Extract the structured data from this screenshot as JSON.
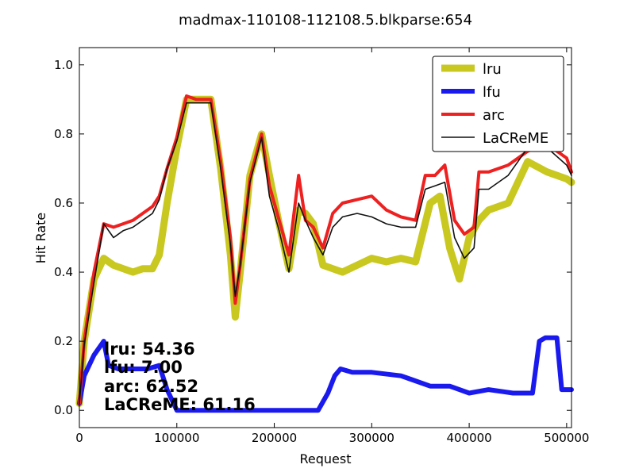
{
  "chart_data": {
    "type": "line",
    "title": "madmax-110108-112108.5.blkparse:654",
    "xlabel": "Request",
    "ylabel": "Hit Rate",
    "xlim": [
      0,
      505000
    ],
    "ylim": [
      -0.05,
      1.05
    ],
    "xticks": [
      0,
      100000,
      200000,
      300000,
      400000,
      500000
    ],
    "xtick_labels": [
      "0",
      "100000",
      "200000",
      "300000",
      "400000",
      "500000"
    ],
    "yticks": [
      0.0,
      0.2,
      0.4,
      0.6,
      0.8,
      1.0
    ],
    "ytick_labels": [
      "0.0",
      "0.2",
      "0.4",
      "0.6",
      "0.8",
      "1.0"
    ],
    "grid": false,
    "legend_position": "upper right",
    "series": [
      {
        "name": "lru",
        "color": "#c8c820",
        "x": [
          0,
          5000,
          15000,
          25000,
          35000,
          45000,
          55000,
          65000,
          75000,
          82000,
          90000,
          100000,
          110000,
          120000,
          135000,
          145000,
          155000,
          160000,
          165000,
          175000,
          187000,
          195000,
          205000,
          215000,
          225000,
          232000,
          240000,
          250000,
          260000,
          270000,
          285000,
          300000,
          315000,
          330000,
          345000,
          360000,
          370000,
          380000,
          390000,
          400000,
          410000,
          420000,
          440000,
          460000,
          480000,
          500000,
          505000
        ],
        "y": [
          0.02,
          0.2,
          0.38,
          0.44,
          0.42,
          0.41,
          0.4,
          0.41,
          0.41,
          0.45,
          0.6,
          0.76,
          0.9,
          0.9,
          0.9,
          0.7,
          0.45,
          0.27,
          0.4,
          0.68,
          0.8,
          0.68,
          0.54,
          0.41,
          0.58,
          0.57,
          0.54,
          0.42,
          0.41,
          0.4,
          0.42,
          0.44,
          0.43,
          0.44,
          0.43,
          0.6,
          0.62,
          0.47,
          0.38,
          0.5,
          0.55,
          0.58,
          0.6,
          0.72,
          0.69,
          0.67,
          0.66
        ]
      },
      {
        "name": "lfu",
        "color": "#1a1aee",
        "x": [
          0,
          5000,
          15000,
          25000,
          30000,
          40000,
          55000,
          70000,
          82000,
          90000,
          100000,
          150000,
          200000,
          245000,
          255000,
          262000,
          268000,
          280000,
          300000,
          330000,
          340000,
          360000,
          380000,
          390000,
          400000,
          420000,
          445000,
          465000,
          472000,
          478000,
          490000,
          495000,
          505000
        ],
        "y": [
          0.02,
          0.1,
          0.16,
          0.2,
          0.13,
          0.12,
          0.12,
          0.12,
          0.13,
          0.06,
          0.0,
          0.0,
          0.0,
          0.0,
          0.05,
          0.1,
          0.12,
          0.11,
          0.11,
          0.1,
          0.09,
          0.07,
          0.07,
          0.06,
          0.05,
          0.06,
          0.05,
          0.05,
          0.2,
          0.21,
          0.21,
          0.06,
          0.06
        ]
      },
      {
        "name": "arc",
        "color": "#ee2020",
        "x": [
          0,
          5000,
          15000,
          25000,
          35000,
          45000,
          55000,
          65000,
          75000,
          82000,
          90000,
          100000,
          110000,
          120000,
          135000,
          145000,
          155000,
          160000,
          165000,
          175000,
          187000,
          195000,
          205000,
          215000,
          225000,
          232000,
          240000,
          250000,
          260000,
          270000,
          285000,
          300000,
          315000,
          330000,
          345000,
          355000,
          365000,
          375000,
          385000,
          395000,
          405000,
          410000,
          420000,
          440000,
          460000,
          480000,
          500000,
          505000
        ],
        "y": [
          0.02,
          0.2,
          0.4,
          0.54,
          0.53,
          0.54,
          0.55,
          0.57,
          0.59,
          0.62,
          0.7,
          0.79,
          0.91,
          0.9,
          0.9,
          0.72,
          0.5,
          0.31,
          0.42,
          0.67,
          0.8,
          0.65,
          0.55,
          0.45,
          0.68,
          0.55,
          0.53,
          0.47,
          0.57,
          0.6,
          0.61,
          0.62,
          0.58,
          0.56,
          0.55,
          0.68,
          0.68,
          0.71,
          0.55,
          0.51,
          0.53,
          0.69,
          0.69,
          0.71,
          0.75,
          0.77,
          0.73,
          0.69
        ]
      },
      {
        "name": "LaCReME",
        "color": "#111111",
        "x": [
          0,
          5000,
          15000,
          25000,
          35000,
          45000,
          55000,
          65000,
          75000,
          82000,
          90000,
          100000,
          110000,
          120000,
          135000,
          145000,
          155000,
          160000,
          165000,
          175000,
          187000,
          195000,
          205000,
          215000,
          225000,
          232000,
          240000,
          250000,
          260000,
          270000,
          285000,
          300000,
          315000,
          330000,
          345000,
          355000,
          365000,
          375000,
          385000,
          395000,
          405000,
          410000,
          420000,
          440000,
          460000,
          480000,
          500000,
          505000
        ],
        "y": [
          0.02,
          0.19,
          0.37,
          0.54,
          0.5,
          0.52,
          0.53,
          0.55,
          0.57,
          0.61,
          0.7,
          0.78,
          0.89,
          0.89,
          0.89,
          0.7,
          0.48,
          0.33,
          0.42,
          0.66,
          0.79,
          0.62,
          0.52,
          0.4,
          0.6,
          0.55,
          0.5,
          0.45,
          0.53,
          0.56,
          0.57,
          0.56,
          0.54,
          0.53,
          0.53,
          0.64,
          0.65,
          0.66,
          0.5,
          0.44,
          0.47,
          0.64,
          0.64,
          0.68,
          0.76,
          0.76,
          0.71,
          0.68
        ]
      }
    ],
    "annotations": [
      "lru:  54.36",
      "lfu:  7.00",
      "arc:  62.52",
      "LaCReME:  61.16"
    ]
  }
}
